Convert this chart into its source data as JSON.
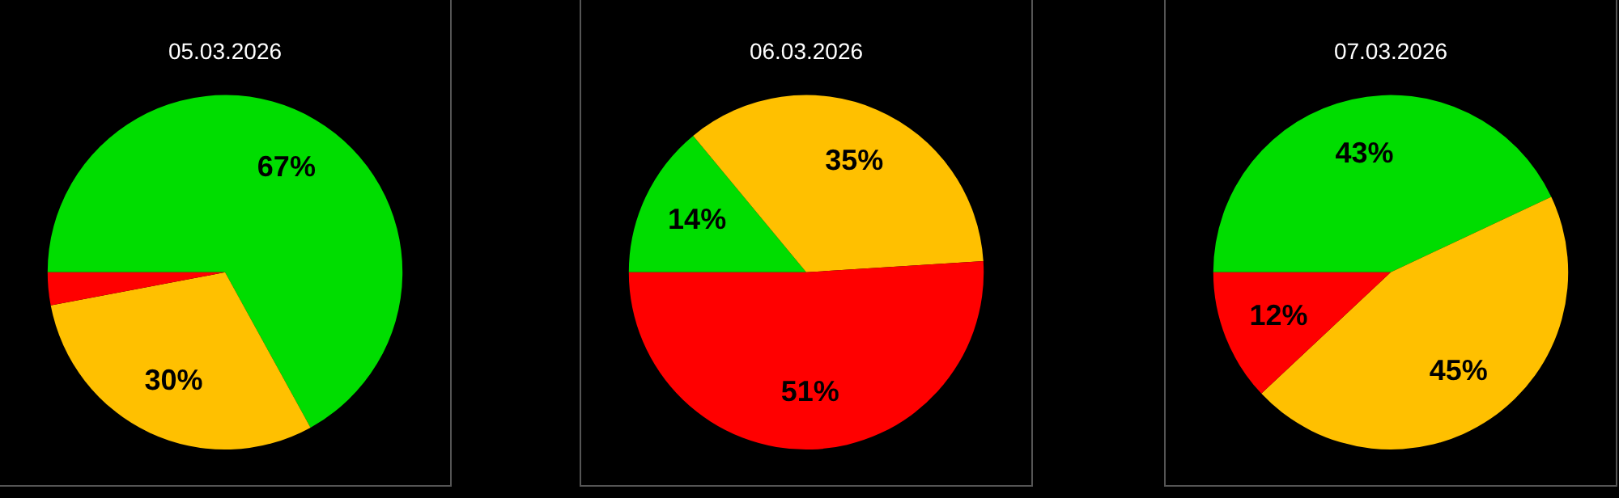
{
  "chart_data": [
    {
      "type": "pie",
      "title": "05.03.2026",
      "categories": [
        null,
        null,
        null
      ],
      "values": [
        67,
        30,
        3
      ],
      "colors": [
        "#00dd00",
        "#ffc000",
        "#ff0000"
      ],
      "value_labels": [
        "67%",
        "30%",
        null
      ],
      "legend": false
    },
    {
      "type": "pie",
      "title": "06.03.2026",
      "categories": [
        null,
        null,
        null
      ],
      "values": [
        14,
        35,
        51
      ],
      "colors": [
        "#00dd00",
        "#ffc000",
        "#ff0000"
      ],
      "value_labels": [
        "14%",
        "35%",
        "51%"
      ],
      "legend": false
    },
    {
      "type": "pie",
      "title": "07.03.2026",
      "categories": [
        null,
        null,
        null
      ],
      "values": [
        43,
        45,
        12
      ],
      "colors": [
        "#00dd00",
        "#ffc000",
        "#ff0000"
      ],
      "value_labels": [
        "43%",
        "45%",
        "12%"
      ],
      "legend": false
    }
  ]
}
